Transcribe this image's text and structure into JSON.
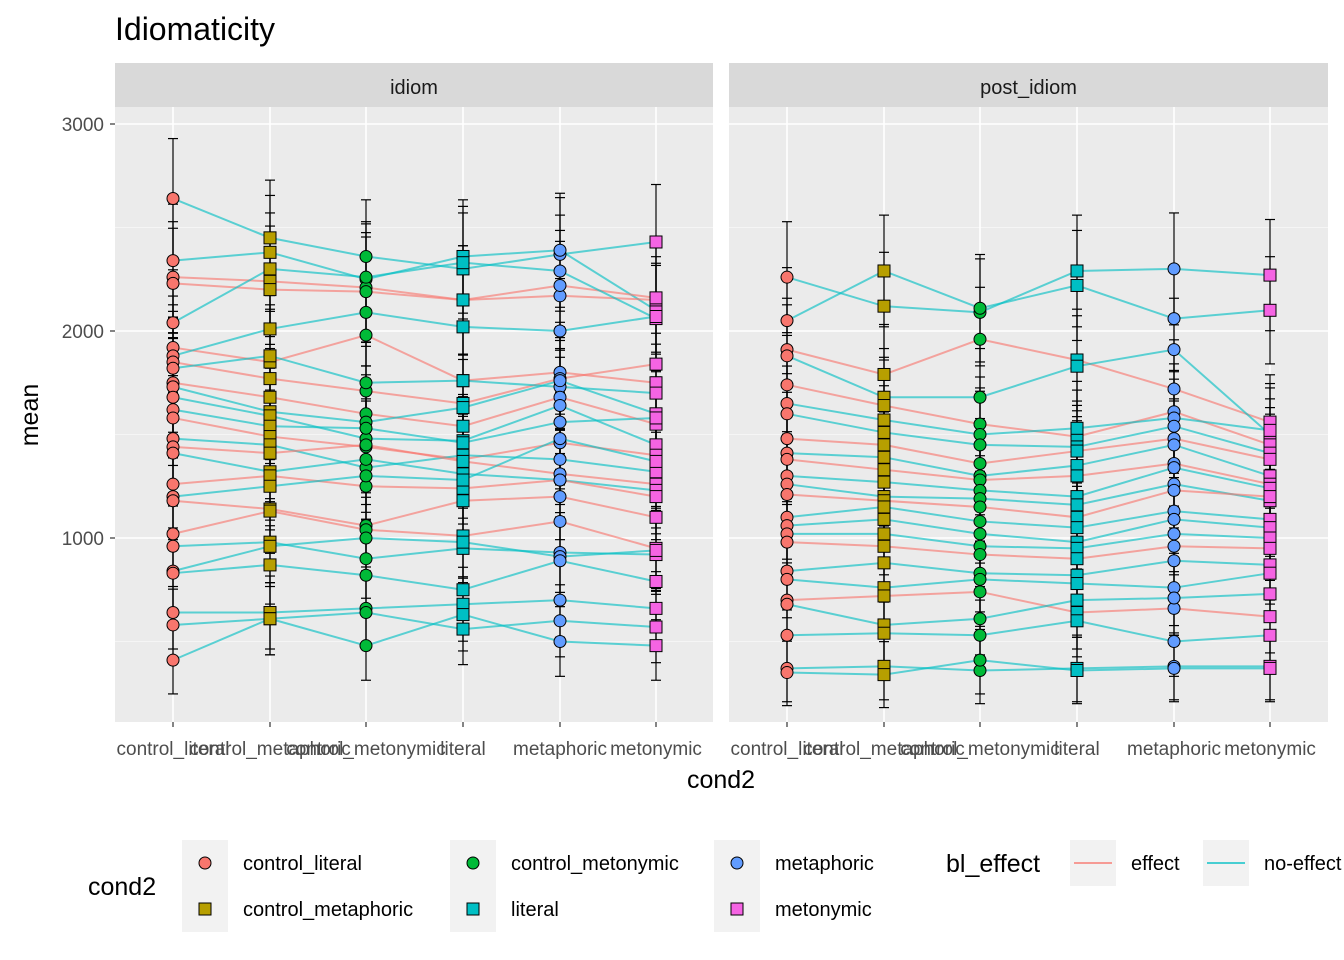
{
  "chart_data": {
    "type": "scatter",
    "title": "Idiomaticity",
    "xlabel": "cond2",
    "ylabel": "mean",
    "ylim": [
      200,
      3100
    ],
    "y_ticks": [
      1000,
      2000,
      3000
    ],
    "grid": true,
    "legend_position": "bottom",
    "categories": [
      "control_literal",
      "control_metaphoric",
      "control_metonymic",
      "literal",
      "metaphoric",
      "metonymic"
    ],
    "facets": [
      "idiom",
      "post_idiom"
    ],
    "colors": {
      "control_literal": "#F8766D",
      "control_metaphoric": "#B79F00",
      "control_metonymic": "#00BA38",
      "literal": "#00BFC4",
      "metaphoric": "#619CFF",
      "metonymic": "#F564E3",
      "effect": "#F8766D",
      "no-effect": "#00BFC4"
    },
    "legend_cond2": {
      "title": "cond2",
      "items": [
        {
          "label": "control_literal",
          "shape": "circle"
        },
        {
          "label": "control_metaphoric",
          "shape": "square"
        },
        {
          "label": "control_metonymic",
          "shape": "circle"
        },
        {
          "label": "literal",
          "shape": "square"
        },
        {
          "label": "metaphoric",
          "shape": "circle"
        },
        {
          "label": "metonymic",
          "shape": "square"
        }
      ]
    },
    "legend_effect": {
      "title": "bl_effect",
      "items": [
        {
          "label": "effect"
        },
        {
          "label": "no-effect"
        }
      ]
    },
    "series": [
      {
        "facet": "idiom",
        "effect": "no-effect",
        "values": [
          2640,
          2450,
          2360,
          2300,
          2370,
          2430
        ]
      },
      {
        "facet": "idiom",
        "effect": "no-effect",
        "values": [
          2340,
          2380,
          2250,
          2360,
          2390,
          2100
        ]
      },
      {
        "facet": "idiom",
        "effect": "effect",
        "values": [
          2260,
          2240,
          2210,
          2150,
          2170,
          2150
        ]
      },
      {
        "facet": "idiom",
        "effect": "effect",
        "values": [
          2230,
          2200,
          2190,
          2150,
          2220,
          2160
        ]
      },
      {
        "facet": "idiom",
        "effect": "no-effect",
        "values": [
          2040,
          2300,
          2260,
          2330,
          2290,
          2060
        ]
      },
      {
        "facet": "idiom",
        "effect": "effect",
        "values": [
          1920,
          1850,
          1980,
          1760,
          1800,
          1750
        ]
      },
      {
        "facet": "idiom",
        "effect": "no-effect",
        "values": [
          1880,
          2010,
          2090,
          2020,
          2000,
          2070
        ]
      },
      {
        "facet": "idiom",
        "effect": "effect",
        "values": [
          1850,
          1770,
          1710,
          1650,
          1770,
          1840
        ]
      },
      {
        "facet": "idiom",
        "effect": "no-effect",
        "values": [
          1820,
          1880,
          1750,
          1760,
          1730,
          1700
        ]
      },
      {
        "facet": "idiom",
        "effect": "effect",
        "values": [
          1750,
          1680,
          1600,
          1540,
          1680,
          1550
        ]
      },
      {
        "facet": "idiom",
        "effect": "no-effect",
        "values": [
          1730,
          1610,
          1560,
          1630,
          1760,
          1600
        ]
      },
      {
        "facet": "idiom",
        "effect": "no-effect",
        "values": [
          1680,
          1590,
          1480,
          1470,
          1640,
          1450
        ]
      },
      {
        "facet": "idiom",
        "effect": "no-effect",
        "values": [
          1620,
          1540,
          1530,
          1460,
          1560,
          1580
        ]
      },
      {
        "facet": "idiom",
        "effect": "effect",
        "values": [
          1580,
          1490,
          1440,
          1380,
          1460,
          1400
        ]
      },
      {
        "facet": "idiom",
        "effect": "no-effect",
        "values": [
          1480,
          1450,
          1340,
          1400,
          1380,
          1320
        ]
      },
      {
        "facet": "idiom",
        "effect": "effect",
        "values": [
          1440,
          1410,
          1450,
          1370,
          1310,
          1260
        ]
      },
      {
        "facet": "idiom",
        "effect": "no-effect",
        "values": [
          1410,
          1320,
          1380,
          1310,
          1280,
          1230
        ]
      },
      {
        "facet": "idiom",
        "effect": "effect",
        "values": [
          1260,
          1300,
          1250,
          1240,
          1280,
          1200
        ]
      },
      {
        "facet": "idiom",
        "effect": "no-effect",
        "values": [
          1200,
          1250,
          1300,
          1280,
          1480,
          1370
        ]
      },
      {
        "facet": "idiom",
        "effect": "effect",
        "values": [
          1180,
          1140,
          1060,
          1180,
          1200,
          1100
        ]
      },
      {
        "facet": "idiom",
        "effect": "effect",
        "values": [
          1020,
          1130,
          1040,
          1010,
          1080,
          950
        ]
      },
      {
        "facet": "idiom",
        "effect": "no-effect",
        "values": [
          960,
          980,
          900,
          950,
          930,
          920
        ]
      },
      {
        "facet": "idiom",
        "effect": "no-effect",
        "values": [
          840,
          960,
          1000,
          980,
          910,
          940
        ]
      },
      {
        "facet": "idiom",
        "effect": "no-effect",
        "values": [
          830,
          870,
          820,
          750,
          890,
          790
        ]
      },
      {
        "facet": "idiom",
        "effect": "no-effect",
        "values": [
          640,
          640,
          660,
          680,
          700,
          660
        ]
      },
      {
        "facet": "idiom",
        "effect": "no-effect",
        "values": [
          580,
          610,
          640,
          560,
          600,
          570
        ]
      },
      {
        "facet": "idiom",
        "effect": "no-effect",
        "values": [
          410,
          610,
          480,
          630,
          500,
          480
        ]
      },
      {
        "facet": "post_idiom",
        "effect": "no-effect",
        "values": [
          2260,
          2120,
          2090,
          2290,
          2300,
          2270
        ]
      },
      {
        "facet": "post_idiom",
        "effect": "no-effect",
        "values": [
          2050,
          2290,
          2110,
          2220,
          2060,
          2100
        ]
      },
      {
        "facet": "post_idiom",
        "effect": "effect",
        "values": [
          1910,
          1790,
          1960,
          1860,
          1720,
          1560
        ]
      },
      {
        "facet": "post_idiom",
        "effect": "no-effect",
        "values": [
          1880,
          1680,
          1680,
          1830,
          1910,
          1500
        ]
      },
      {
        "facet": "post_idiom",
        "effect": "effect",
        "values": [
          1740,
          1640,
          1550,
          1490,
          1610,
          1450
        ]
      },
      {
        "facet": "post_idiom",
        "effect": "no-effect",
        "values": [
          1650,
          1570,
          1500,
          1530,
          1580,
          1520
        ]
      },
      {
        "facet": "post_idiom",
        "effect": "no-effect",
        "values": [
          1600,
          1510,
          1450,
          1440,
          1540,
          1410
        ]
      },
      {
        "facet": "post_idiom",
        "effect": "effect",
        "values": [
          1480,
          1450,
          1360,
          1420,
          1480,
          1380
        ]
      },
      {
        "facet": "post_idiom",
        "effect": "no-effect",
        "values": [
          1410,
          1390,
          1300,
          1350,
          1450,
          1300
        ]
      },
      {
        "facet": "post_idiom",
        "effect": "effect",
        "values": [
          1380,
          1330,
          1280,
          1300,
          1360,
          1260
        ]
      },
      {
        "facet": "post_idiom",
        "effect": "no-effect",
        "values": [
          1300,
          1270,
          1230,
          1200,
          1340,
          1240
        ]
      },
      {
        "facet": "post_idiom",
        "effect": "no-effect",
        "values": [
          1260,
          1200,
          1190,
          1160,
          1260,
          1180
        ]
      },
      {
        "facet": "post_idiom",
        "effect": "effect",
        "values": [
          1210,
          1180,
          1150,
          1100,
          1230,
          1200
        ]
      },
      {
        "facet": "post_idiom",
        "effect": "no-effect",
        "values": [
          1100,
          1150,
          1080,
          1050,
          1130,
          1090
        ]
      },
      {
        "facet": "post_idiom",
        "effect": "no-effect",
        "values": [
          1060,
          1090,
          1020,
          980,
          1090,
          1050
        ]
      },
      {
        "facet": "post_idiom",
        "effect": "no-effect",
        "values": [
          1020,
          1020,
          960,
          950,
          1020,
          1000
        ]
      },
      {
        "facet": "post_idiom",
        "effect": "effect",
        "values": [
          980,
          960,
          920,
          900,
          960,
          950
        ]
      },
      {
        "facet": "post_idiom",
        "effect": "no-effect",
        "values": [
          840,
          880,
          830,
          820,
          890,
          870
        ]
      },
      {
        "facet": "post_idiom",
        "effect": "no-effect",
        "values": [
          800,
          760,
          800,
          780,
          760,
          830
        ]
      },
      {
        "facet": "post_idiom",
        "effect": "effect",
        "values": [
          700,
          720,
          740,
          640,
          660,
          620
        ]
      },
      {
        "facet": "post_idiom",
        "effect": "no-effect",
        "values": [
          680,
          580,
          610,
          700,
          710,
          730
        ]
      },
      {
        "facet": "post_idiom",
        "effect": "no-effect",
        "values": [
          530,
          540,
          530,
          600,
          500,
          530
        ]
      },
      {
        "facet": "post_idiom",
        "effect": "no-effect",
        "values": [
          370,
          380,
          360,
          370,
          380,
          380
        ]
      },
      {
        "facet": "post_idiom",
        "effect": "no-effect",
        "values": [
          350,
          340,
          410,
          360,
          370,
          370
        ]
      }
    ]
  }
}
